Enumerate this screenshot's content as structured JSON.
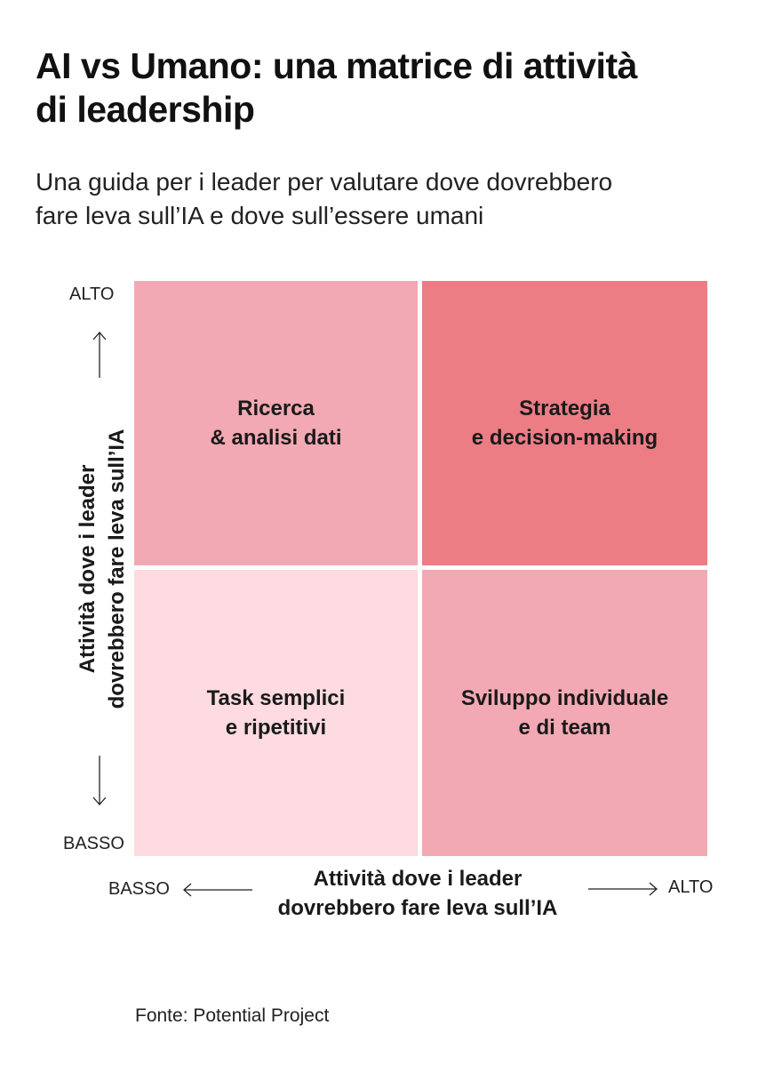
{
  "header": {
    "title": "AI vs Umano: una matrice di attività\ndi leadership",
    "subtitle": "Una guida per i leader per valutare dove dovrebbero\nfare leva sull’IA e dove sull’essere umani"
  },
  "matrix": {
    "quadrants": {
      "top_left": {
        "label": "Ricerca\n& analisi dati",
        "color": "#f2a9b3"
      },
      "top_right": {
        "label": "Strategia\ne decision-making",
        "color": "#ec7d85"
      },
      "bottom_left": {
        "label": "Task semplici\ne ripetitivi",
        "color": "#fddbe0"
      },
      "bottom_right": {
        "label": "Sviluppo individuale\ne di team",
        "color": "#f2a9b3"
      }
    },
    "y_axis": {
      "title": "Attività dove i leader\ndovrebbero fare leva sull’IA",
      "high_label": "ALTO",
      "low_label": "BASSO"
    },
    "x_axis": {
      "title": "Attività dove i leader\ndovrebbero fare leva sull’IA",
      "high_label": "ALTO",
      "low_label": "BASSO"
    }
  },
  "footer": {
    "source": "Fonte: Potential Project"
  }
}
